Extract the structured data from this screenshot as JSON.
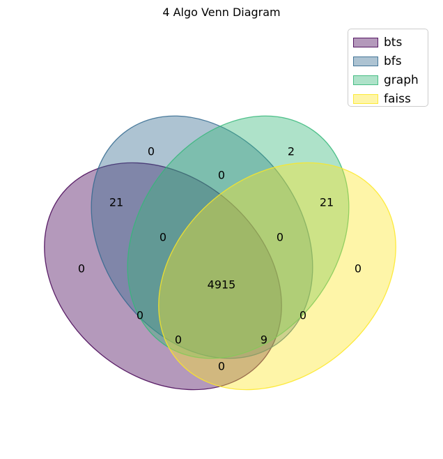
{
  "title": "4 Algo Venn Diagram",
  "sets": [
    {
      "name": "bts",
      "fill": "#440154",
      "stroke": "#440154"
    },
    {
      "name": "bfs",
      "fill": "#31688e",
      "stroke": "#31688e"
    },
    {
      "name": "graph",
      "fill": "#35b779",
      "stroke": "#35b779"
    },
    {
      "name": "faiss",
      "fill": "#fde725",
      "stroke": "#fde725"
    }
  ],
  "fill_opacity": 0.4,
  "regions": [
    {
      "sets": [
        "bfs"
      ],
      "value": "0"
    },
    {
      "sets": [
        "graph"
      ],
      "value": "2"
    },
    {
      "sets": [
        "bfs",
        "graph"
      ],
      "value": "0"
    },
    {
      "sets": [
        "bts",
        "bfs"
      ],
      "value": "21"
    },
    {
      "sets": [
        "graph",
        "faiss"
      ],
      "value": "21"
    },
    {
      "sets": [
        "bts",
        "bfs",
        "graph"
      ],
      "value": "0"
    },
    {
      "sets": [
        "bfs",
        "graph",
        "faiss"
      ],
      "value": "0"
    },
    {
      "sets": [
        "bts"
      ],
      "value": "0"
    },
    {
      "sets": [
        "faiss"
      ],
      "value": "0"
    },
    {
      "sets": [
        "bts",
        "bfs",
        "graph",
        "faiss"
      ],
      "value": "4915"
    },
    {
      "sets": [
        "bts",
        "graph"
      ],
      "value": "0"
    },
    {
      "sets": [
        "bfs",
        "faiss"
      ],
      "value": "0"
    },
    {
      "sets": [
        "bts",
        "graph",
        "faiss"
      ],
      "value": "0"
    },
    {
      "sets": [
        "bts",
        "bfs",
        "faiss"
      ],
      "value": "9"
    },
    {
      "sets": [
        "bts",
        "faiss"
      ],
      "value": "0"
    }
  ]
}
